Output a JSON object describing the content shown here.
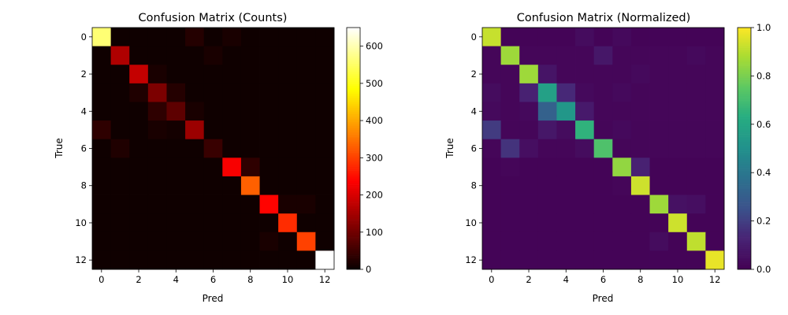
{
  "chart_data": [
    {
      "type": "heatmap",
      "title": "Confusion Matrix (Counts)",
      "xlabel": "Pred",
      "ylabel": "True",
      "colormap": "hot",
      "xticks": [
        "0",
        "2",
        "4",
        "6",
        "8",
        "10",
        "12"
      ],
      "yticks": [
        "0",
        "2",
        "4",
        "6",
        "8",
        "10",
        "12"
      ],
      "colorbar": {
        "vmin": 0,
        "vmax": 650,
        "ticks": [
          "0",
          "100",
          "200",
          "300",
          "400",
          "500",
          "600"
        ]
      },
      "matrix": [
        [
          560,
          5,
          5,
          5,
          5,
          25,
          5,
          15,
          5,
          5,
          5,
          5,
          5
        ],
        [
          5,
          160,
          5,
          5,
          5,
          5,
          15,
          5,
          5,
          5,
          5,
          5,
          5
        ],
        [
          5,
          5,
          180,
          15,
          5,
          5,
          5,
          5,
          5,
          5,
          5,
          5,
          5
        ],
        [
          5,
          5,
          20,
          110,
          25,
          5,
          5,
          5,
          5,
          5,
          5,
          5,
          5
        ],
        [
          5,
          5,
          5,
          35,
          80,
          15,
          5,
          5,
          5,
          5,
          5,
          5,
          5
        ],
        [
          35,
          5,
          5,
          15,
          10,
          140,
          5,
          5,
          5,
          5,
          5,
          5,
          5
        ],
        [
          5,
          20,
          5,
          5,
          5,
          5,
          45,
          5,
          5,
          5,
          5,
          5,
          5
        ],
        [
          5,
          5,
          5,
          5,
          5,
          5,
          5,
          230,
          35,
          5,
          5,
          5,
          5
        ],
        [
          5,
          5,
          5,
          5,
          5,
          5,
          5,
          5,
          330,
          5,
          5,
          5,
          5
        ],
        [
          5,
          5,
          5,
          5,
          5,
          5,
          5,
          5,
          5,
          240,
          15,
          15,
          5
        ],
        [
          5,
          5,
          5,
          5,
          5,
          5,
          5,
          5,
          5,
          5,
          280,
          5,
          5
        ],
        [
          5,
          5,
          5,
          5,
          5,
          5,
          5,
          5,
          5,
          15,
          5,
          300,
          5
        ],
        [
          5,
          5,
          5,
          5,
          5,
          5,
          5,
          5,
          5,
          5,
          5,
          5,
          650
        ]
      ]
    },
    {
      "type": "heatmap",
      "title": "Confusion Matrix (Normalized)",
      "xlabel": "Pred",
      "ylabel": "True",
      "colormap": "viridis",
      "xticks": [
        "0",
        "2",
        "4",
        "6",
        "8",
        "10",
        "12"
      ],
      "yticks": [
        "0",
        "2",
        "4",
        "6",
        "8",
        "10",
        "12"
      ],
      "colorbar": {
        "vmin": 0,
        "vmax": 1,
        "ticks": [
          "0.0",
          "0.2",
          "0.4",
          "0.6",
          "0.8",
          "1.0"
        ]
      },
      "matrix": [
        [
          0.92,
          0.01,
          0.01,
          0.01,
          0.01,
          0.04,
          0.01,
          0.03,
          0.01,
          0.01,
          0.01,
          0.01,
          0.01
        ],
        [
          0.02,
          0.86,
          0.02,
          0.02,
          0.02,
          0.02,
          0.08,
          0.02,
          0.02,
          0.02,
          0.02,
          0.03,
          0.02
        ],
        [
          0.02,
          0.02,
          0.86,
          0.07,
          0.02,
          0.02,
          0.02,
          0.02,
          0.03,
          0.02,
          0.02,
          0.02,
          0.02
        ],
        [
          0.04,
          0.02,
          0.12,
          0.57,
          0.14,
          0.03,
          0.02,
          0.03,
          0.02,
          0.02,
          0.02,
          0.02,
          0.02
        ],
        [
          0.03,
          0.02,
          0.03,
          0.31,
          0.53,
          0.09,
          0.02,
          0.02,
          0.02,
          0.02,
          0.02,
          0.02,
          0.02
        ],
        [
          0.19,
          0.02,
          0.02,
          0.08,
          0.04,
          0.65,
          0.02,
          0.03,
          0.02,
          0.02,
          0.02,
          0.02,
          0.02
        ],
        [
          0.02,
          0.17,
          0.05,
          0.02,
          0.02,
          0.04,
          0.72,
          0.02,
          0.02,
          0.02,
          0.02,
          0.02,
          0.02
        ],
        [
          0.01,
          0.02,
          0.01,
          0.01,
          0.01,
          0.01,
          0.01,
          0.84,
          0.12,
          0.01,
          0.01,
          0.01,
          0.01
        ],
        [
          0.01,
          0.01,
          0.01,
          0.01,
          0.01,
          0.01,
          0.01,
          0.02,
          0.93,
          0.01,
          0.01,
          0.01,
          0.01
        ],
        [
          0.01,
          0.01,
          0.01,
          0.01,
          0.01,
          0.01,
          0.01,
          0.01,
          0.01,
          0.86,
          0.06,
          0.05,
          0.01
        ],
        [
          0.01,
          0.01,
          0.01,
          0.01,
          0.01,
          0.01,
          0.01,
          0.01,
          0.01,
          0.01,
          0.93,
          0.01,
          0.01
        ],
        [
          0.01,
          0.01,
          0.01,
          0.01,
          0.01,
          0.01,
          0.01,
          0.01,
          0.01,
          0.04,
          0.01,
          0.91,
          0.01
        ],
        [
          0.01,
          0.01,
          0.01,
          0.01,
          0.01,
          0.01,
          0.01,
          0.01,
          0.01,
          0.01,
          0.01,
          0.01,
          0.97
        ]
      ]
    }
  ]
}
